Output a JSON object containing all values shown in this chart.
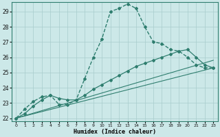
{
  "xlabel": "Humidex (Indice chaleur)",
  "bg_color": "#cce8e8",
  "line_color": "#2e7d6e",
  "grid_color": "#a8cccc",
  "ylim": [
    21.8,
    29.6
  ],
  "xlim": [
    -0.5,
    23.5
  ],
  "yticks": [
    22,
    23,
    24,
    25,
    26,
    27,
    28,
    29
  ],
  "xticks": [
    0,
    1,
    2,
    3,
    4,
    5,
    6,
    7,
    8,
    9,
    10,
    11,
    12,
    13,
    14,
    15,
    16,
    17,
    18,
    19,
    20,
    21,
    22,
    23
  ],
  "lines": [
    {
      "x": [
        0,
        1,
        2,
        3,
        4,
        5,
        6,
        7,
        8,
        9,
        10,
        11,
        12,
        13,
        14,
        15,
        16,
        17,
        18,
        19,
        20,
        21,
        22,
        23
      ],
      "y": [
        22.0,
        22.6,
        23.1,
        23.4,
        23.5,
        22.9,
        22.9,
        23.2,
        24.6,
        26.0,
        27.2,
        29.0,
        29.2,
        29.5,
        29.2,
        28.0,
        27.0,
        26.9,
        26.5,
        26.4,
        26.0,
        25.5,
        25.3,
        25.3
      ],
      "dashed": true,
      "marker": "D",
      "markersize": 2.0,
      "linewidth": 1.0
    },
    {
      "x": [
        0,
        23
      ],
      "y": [
        22.0,
        25.3
      ],
      "dashed": false,
      "marker": null,
      "markersize": 0,
      "linewidth": 0.8
    },
    {
      "x": [
        0,
        23
      ],
      "y": [
        22.0,
        25.8
      ],
      "dashed": false,
      "marker": null,
      "markersize": 0,
      "linewidth": 0.8
    },
    {
      "x": [
        0,
        1,
        2,
        3,
        4,
        5,
        6,
        7,
        8,
        9,
        10,
        11,
        12,
        13,
        14,
        15,
        16,
        17,
        18,
        19,
        20,
        21,
        22,
        23
      ],
      "y": [
        22.0,
        22.3,
        22.8,
        23.2,
        23.5,
        23.3,
        23.2,
        23.2,
        23.5,
        23.9,
        24.2,
        24.5,
        24.8,
        25.1,
        25.4,
        25.6,
        25.8,
        26.0,
        26.2,
        26.4,
        26.5,
        26.0,
        25.5,
        25.3
      ],
      "dashed": false,
      "marker": "D",
      "markersize": 2.0,
      "linewidth": 0.9
    }
  ]
}
